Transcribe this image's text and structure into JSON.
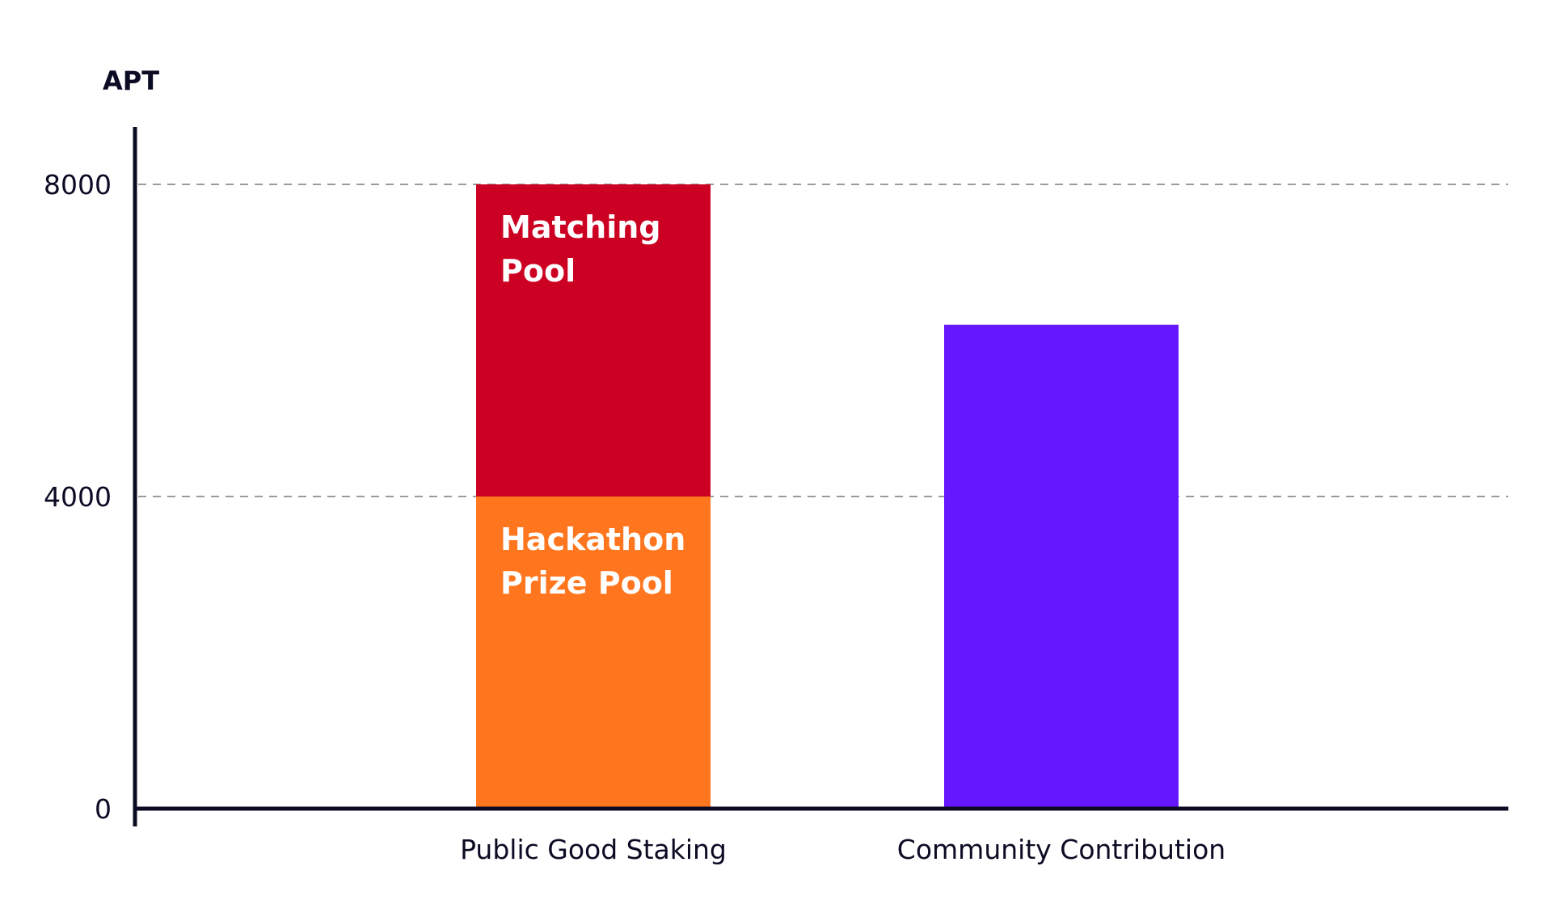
{
  "chart_data": {
    "type": "bar",
    "stacked": true,
    "ylabel": "APT",
    "xlabel": "",
    "ylim": [
      0,
      9000
    ],
    "yticks": [
      0,
      4000,
      8000
    ],
    "gridlines": [
      4000,
      8000
    ],
    "grid_style": "dashed",
    "legend": "none",
    "categories": [
      "Public Good Staking",
      "Community Contribution"
    ],
    "series": [
      {
        "name": "Hackathon Prize Pool",
        "label_lines": [
          "Hackathon",
          "Prize Pool"
        ],
        "color": "#ff761e",
        "values": [
          4000,
          0
        ]
      },
      {
        "name": "Matching Pool",
        "label_lines": [
          "Matching",
          "Pool"
        ],
        "color": "#cc0022",
        "values": [
          4000,
          0
        ]
      },
      {
        "name": "",
        "label_lines": [],
        "color": "#6517ff",
        "values": [
          0,
          6200
        ]
      }
    ]
  }
}
